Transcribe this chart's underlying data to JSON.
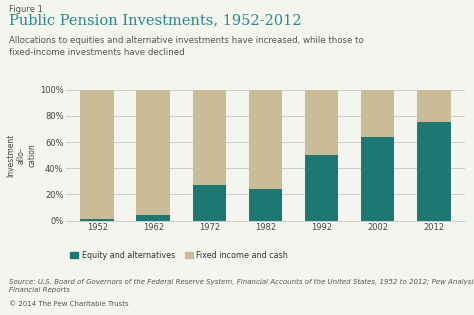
{
  "figure_label": "Figure 1",
  "title": "Public Pension Investments, 1952-2012",
  "subtitle": "Allocations to equities and alternative investments have increased, while those to\nfixed-income investments have declined",
  "years": [
    "1952",
    "1962",
    "1972",
    "1982",
    "1992",
    "2002",
    "2012"
  ],
  "equity": [
    1,
    4,
    27,
    24,
    50,
    64,
    75
  ],
  "fixed": [
    99,
    96,
    73,
    76,
    50,
    36,
    25
  ],
  "equity_color": "#1d7874",
  "fixed_color": "#c9bc97",
  "ylabel": "Investment\nallo-\ncation",
  "ylim": [
    0,
    100
  ],
  "legend_equity": "Equity and alternatives",
  "legend_fixed": "Fixed income and cash",
  "source_text": "Source: U.S. Board of Governors of the Federal Reserve System, Financial Accounts of the United States, 1952 to 2012; Pew Analysis of State\nFinancial Reports",
  "copyright_text": "© 2014 The Pew Charitable Trusts",
  "background_color": "#f5f5f0",
  "grid_color": "#bbbbbb",
  "title_color": "#2a8a8a",
  "figure_label_color": "#555555",
  "subtitle_color": "#555555",
  "bar_width": 0.6
}
